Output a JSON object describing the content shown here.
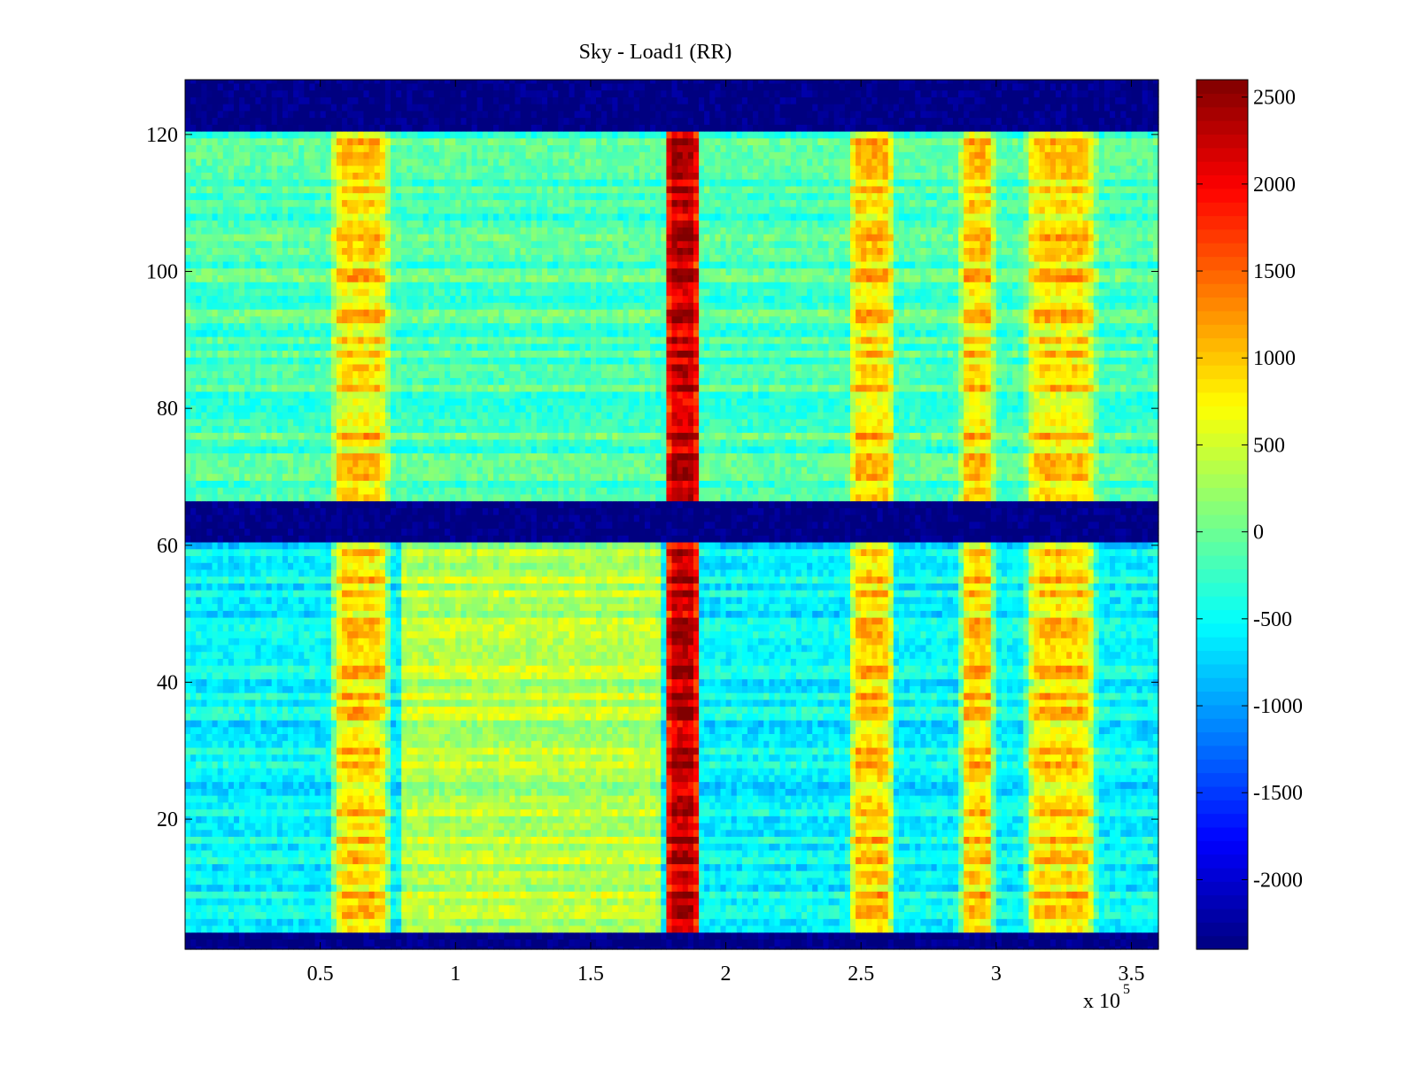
{
  "chart_data": {
    "type": "heatmap",
    "title": "Sky - Load1 (RR)",
    "xlabel": "",
    "ylabel": "",
    "x_multiplier": "x 10",
    "x_multiplier_exponent": "5",
    "xlim": [
      0,
      3.6
    ],
    "ylim": [
      1,
      128
    ],
    "x_ticks": [
      0.5,
      1,
      1.5,
      2,
      2.5,
      3,
      3.5
    ],
    "x_tick_labels": [
      "0.5",
      "1",
      "1.5",
      "2",
      "2.5",
      "3",
      "3.5"
    ],
    "y_ticks": [
      20,
      40,
      60,
      80,
      100,
      120
    ],
    "y_tick_labels": [
      "20",
      "40",
      "60",
      "80",
      "100",
      "120"
    ],
    "colormap": "jet",
    "clim": [
      -2400,
      2600
    ],
    "colorbar_ticks": [
      2500,
      2000,
      1500,
      1000,
      500,
      0,
      -500,
      -1000,
      -1500,
      -2000
    ],
    "colorbar_tick_labels": [
      "2500",
      "2000",
      "1500",
      "1000",
      "500",
      "0",
      "-500",
      "-1000",
      "-1500",
      "-2000"
    ],
    "masked_rows": [
      {
        "from": 0.5,
        "to": 4,
        "value": -2400
      },
      {
        "from": 61,
        "to": 67,
        "value": -2400
      },
      {
        "from": 121,
        "to": 128.5,
        "value": -2400
      }
    ],
    "background": {
      "upper_rows": {
        "from": 67,
        "to": 121,
        "value": -150
      },
      "lower_rows": {
        "from": 4,
        "to": 61,
        "value": -550
      }
    },
    "features": [
      {
        "name": "band-1",
        "x_center": 0.65,
        "x_width": 0.22,
        "value": 900
      },
      {
        "name": "band-2",
        "x_center": 1.84,
        "x_width": 0.14,
        "value": 2300
      },
      {
        "name": "band-3",
        "x_center": 2.54,
        "x_width": 0.17,
        "value": 950
      },
      {
        "name": "band-4",
        "x_center": 2.93,
        "x_width": 0.13,
        "value": 950
      },
      {
        "name": "band-5",
        "x_center": 3.24,
        "x_width": 0.27,
        "value": 900
      },
      {
        "name": "lower-plateau",
        "x_from": 0.8,
        "x_to": 1.75,
        "value": 350
      }
    ]
  }
}
